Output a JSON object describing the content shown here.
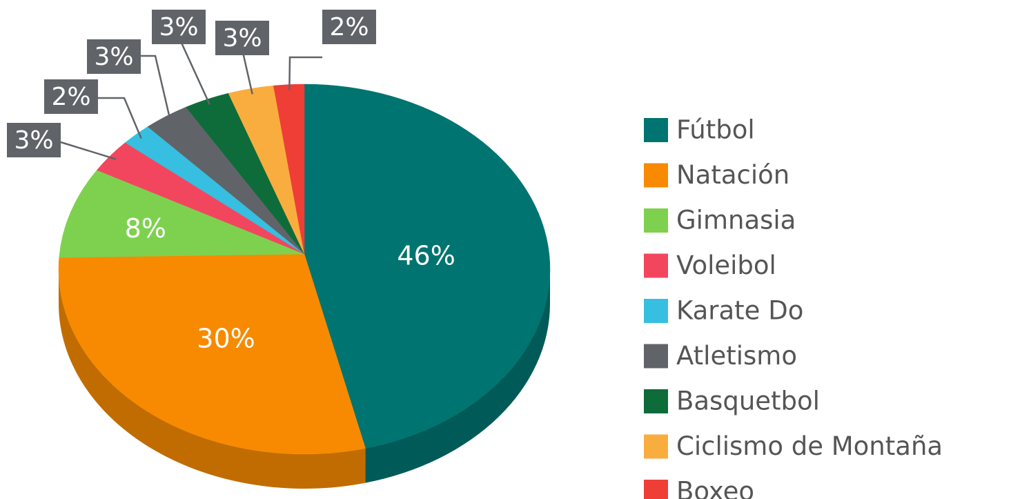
{
  "chart_data": {
    "type": "pie",
    "categories": [
      "Fútbol",
      "Natación",
      "Gimnasia",
      "Voleibol",
      "Karate Do",
      "Atletismo",
      "Basquetbol",
      "Ciclismo de Montaña",
      "Boxeo"
    ],
    "values": [
      46,
      30,
      8,
      3,
      2,
      3,
      3,
      3,
      2
    ],
    "value_labels": [
      "46%",
      "30%",
      "8%",
      "3%",
      "2%",
      "3%",
      "3%",
      "3%",
      "2%"
    ],
    "colors": [
      "#007470",
      "#f78a00",
      "#7ed14e",
      "#f2465e",
      "#36bfe0",
      "#606468",
      "#0e6b3a",
      "#f9ad3f",
      "#ee3e36"
    ],
    "legend": "right"
  }
}
